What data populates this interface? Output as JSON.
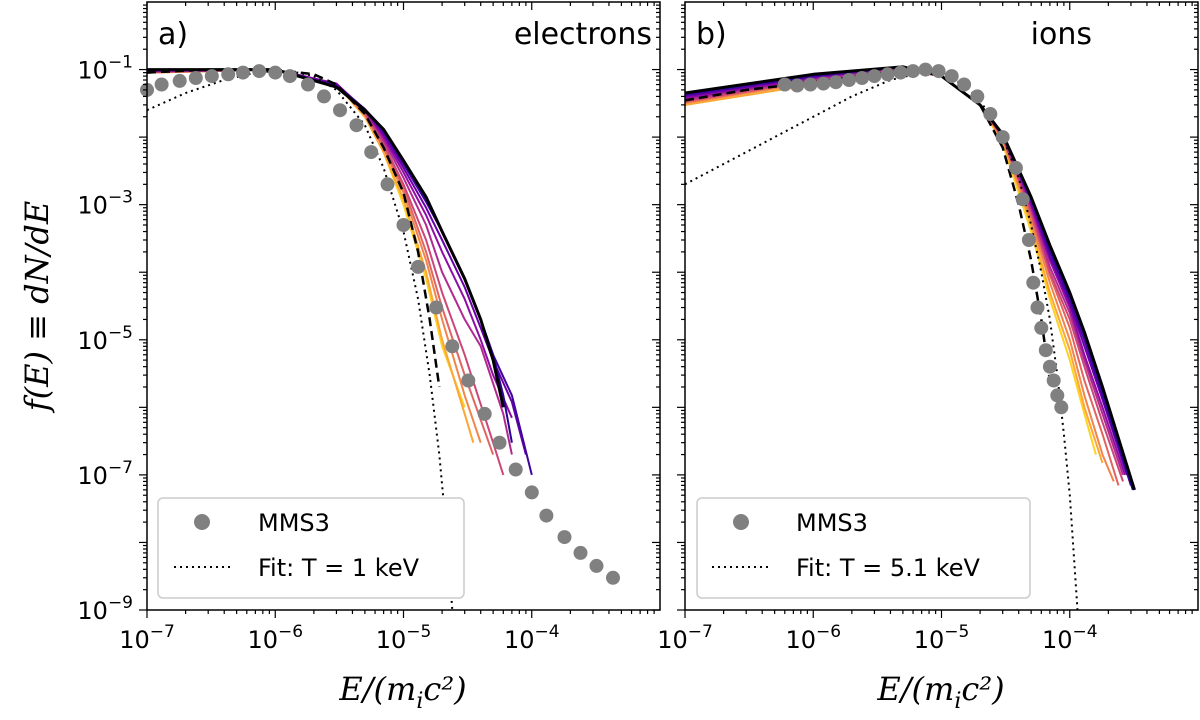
{
  "chart_data": [
    {
      "type": "line",
      "panel": "a)",
      "title": "electrons",
      "xlabel": "E/(m_i c^2)",
      "ylabel": "f(E) ≡ dN/dE",
      "xscale": "log",
      "yscale": "log",
      "xlim": [
        1e-07,
        0.001
      ],
      "ylim": [
        1e-09,
        1
      ],
      "xticks": [
        {
          "v": 1e-07,
          "label": "10",
          "exp": "−7"
        },
        {
          "v": 1e-06,
          "label": "10",
          "exp": "−6"
        },
        {
          "v": 1e-05,
          "label": "10",
          "exp": "−5"
        },
        {
          "v": 0.0001,
          "label": "10",
          "exp": "−4"
        }
      ],
      "yticks": [
        {
          "v": 1e-09,
          "label": "10",
          "exp": "−9"
        },
        {
          "v": 1e-07,
          "label": "10",
          "exp": "−7"
        },
        {
          "v": 1e-05,
          "label": "10",
          "exp": "−5"
        },
        {
          "v": 0.001,
          "label": "10",
          "exp": "−3"
        },
        {
          "v": 0.1,
          "label": "10",
          "exp": "−1"
        }
      ],
      "sim_series_colors": [
        "#fcd225",
        "#fca636",
        "#f2844b",
        "#e16462",
        "#cc4778",
        "#b12a90",
        "#8f0da4",
        "#6a00a8",
        "#41049d",
        "#2a0593",
        "#000004"
      ],
      "sim_series": [
        {
          "x": [
            1e-07,
            1e-06,
            3e-06,
            5e-06,
            7e-06,
            1e-05,
            1.5e-05,
            2e-05,
            3e-05
          ],
          "y": [
            0.09,
            0.1,
            0.06,
            0.02,
            0.006,
            0.001,
            8e-05,
            8e-06,
            1e-06
          ]
        },
        {
          "x": [
            1e-07,
            1e-06,
            3e-06,
            5e-06,
            7e-06,
            1e-05,
            1.5e-05,
            2e-05,
            3e-05,
            3.5e-05
          ],
          "y": [
            0.09,
            0.1,
            0.06,
            0.02,
            0.006,
            0.0012,
            0.0001,
            1e-05,
            8e-07,
            3e-07
          ]
        },
        {
          "x": [
            1e-07,
            1e-06,
            3e-06,
            5e-06,
            7e-06,
            1e-05,
            1.5e-05,
            2e-05,
            3e-05,
            4e-05
          ],
          "y": [
            0.09,
            0.1,
            0.06,
            0.022,
            0.007,
            0.0015,
            0.00015,
            2e-05,
            1.5e-06,
            3e-07
          ]
        },
        {
          "x": [
            1e-07,
            1e-06,
            3e-06,
            5e-06,
            7e-06,
            1e-05,
            1.5e-05,
            2e-05,
            3e-05,
            5e-05
          ],
          "y": [
            0.092,
            0.1,
            0.06,
            0.022,
            0.007,
            0.0018,
            0.0002,
            3e-05,
            3e-06,
            2e-07
          ]
        },
        {
          "x": [
            1e-07,
            1e-06,
            3e-06,
            5e-06,
            7e-06,
            1e-05,
            1.5e-05,
            2e-05,
            3e-05,
            5e-05,
            6e-05
          ],
          "y": [
            0.092,
            0.1,
            0.06,
            0.023,
            0.008,
            0.002,
            0.0003,
            5e-05,
            6e-06,
            3e-07,
            1e-07
          ]
        },
        {
          "x": [
            1e-07,
            1e-06,
            3e-06,
            5e-06,
            7e-06,
            1e-05,
            1.5e-05,
            2e-05,
            3e-05,
            4e-05,
            6e-05,
            7e-05
          ],
          "y": [
            0.093,
            0.1,
            0.062,
            0.025,
            0.009,
            0.0025,
            0.0005,
            0.0001,
            2e-05,
            8e-06,
            8e-07,
            2e-07
          ]
        },
        {
          "x": [
            1e-07,
            1e-06,
            3e-06,
            5e-06,
            7e-06,
            1e-05,
            1.5e-05,
            2e-05,
            3e-05,
            4e-05,
            5e-05,
            7e-05
          ],
          "y": [
            0.095,
            0.1,
            0.062,
            0.025,
            0.01,
            0.003,
            0.0007,
            0.0002,
            4e-05,
            1e-05,
            3e-06,
            7e-07
          ]
        },
        {
          "x": [
            1e-07,
            1e-06,
            3e-06,
            5e-06,
            7e-06,
            1e-05,
            1.5e-05,
            2e-05,
            3e-05,
            4e-05,
            5e-05,
            7e-05,
            9e-05
          ],
          "y": [
            0.097,
            0.1,
            0.06,
            0.026,
            0.011,
            0.0035,
            0.0009,
            0.0003,
            6e-05,
            1.5e-05,
            5e-06,
            1.2e-06,
            2e-07
          ]
        },
        {
          "x": [
            1e-07,
            1e-06,
            3e-06,
            5e-06,
            7e-06,
            1e-05,
            1.5e-05,
            2e-05,
            3e-05,
            4e-05,
            5e-05,
            7e-05,
            0.0001
          ],
          "y": [
            0.1,
            0.1,
            0.058,
            0.026,
            0.012,
            0.004,
            0.0011,
            0.0004,
            8e-05,
            2e-05,
            6e-06,
            1.5e-06,
            1e-07
          ]
        },
        {
          "x": [
            1e-07,
            1e-06,
            3e-06,
            5e-06,
            7e-06,
            1e-05,
            1.5e-05,
            2e-05,
            3e-05,
            4e-05,
            5e-05,
            6e-05,
            7e-05
          ],
          "y": [
            0.1,
            0.1,
            0.056,
            0.026,
            0.013,
            0.0045,
            0.0012,
            0.0004,
            8e-05,
            2e-05,
            6e-06,
            1.5e-06,
            3e-07
          ]
        },
        {
          "x": [
            1e-07,
            1e-06,
            3e-06,
            5e-06,
            7e-06,
            1e-05,
            1.5e-05,
            2e-05,
            3e-05,
            4e-05,
            5e-05,
            6e-05
          ],
          "y": [
            0.1,
            0.1,
            0.055,
            0.025,
            0.013,
            0.0045,
            0.0013,
            0.0004,
            8e-05,
            2e-05,
            5e-06,
            1e-06
          ]
        }
      ],
      "dashed_series": {
        "x": [
          1e-07,
          3e-07,
          1e-06,
          2e-06,
          3e-06,
          5e-06,
          7e-06,
          1e-05,
          1.3e-05,
          1.6e-05,
          1.9e-05
        ],
        "y": [
          0.09,
          0.1,
          0.1,
          0.085,
          0.06,
          0.022,
          0.007,
          0.0015,
          0.0002,
          2e-05,
          2e-06
        ]
      },
      "scatter_series": {
        "name": "MMS3",
        "x": [
          1e-07,
          1.3e-07,
          1.8e-07,
          2.4e-07,
          3.2e-07,
          4.3e-07,
          5.6e-07,
          7.5e-07,
          1e-06,
          1.3e-06,
          1.8e-06,
          2.4e-06,
          3.2e-06,
          4.3e-06,
          5.6e-06,
          7.5e-06,
          1e-05,
          1.3e-05,
          1.8e-05,
          2.4e-05,
          3.2e-05,
          4.3e-05,
          5.6e-05,
          7.5e-05,
          0.0001,
          0.00013,
          0.00018,
          0.00024,
          0.00032,
          0.00043
        ],
        "y": [
          0.05,
          0.06,
          0.068,
          0.075,
          0.08,
          0.085,
          0.09,
          0.095,
          0.09,
          0.08,
          0.06,
          0.04,
          0.025,
          0.015,
          0.006,
          0.002,
          0.0005,
          0.00012,
          3e-05,
          8e-06,
          2.5e-06,
          8e-07,
          3e-07,
          1.2e-07,
          5.5e-08,
          2.5e-08,
          1.2e-08,
          7e-09,
          4.5e-09,
          3e-09
        ]
      },
      "fit_series": {
        "name": "Fit: T = 1 keV",
        "x": [
          1e-07,
          2e-07,
          4e-07,
          7e-07,
          1e-06,
          1.5e-06,
          2e-06,
          3e-06,
          5e-06,
          7e-06,
          1e-05,
          1.3e-05,
          1.6e-05,
          1.9e-05,
          2.2e-05,
          2.4e-05
        ],
        "y": [
          0.025,
          0.045,
          0.07,
          0.09,
          0.095,
          0.09,
          0.08,
          0.05,
          0.015,
          0.0035,
          0.0004,
          4e-05,
          3e-06,
          2e-07,
          1e-08,
          1e-09
        ]
      },
      "legend": {
        "placement": "lower-left",
        "entries": [
          {
            "marker": "gray-circle",
            "label": "MMS3"
          },
          {
            "marker": "dotted-line",
            "label": "Fit: T = 1 keV"
          }
        ]
      }
    },
    {
      "type": "line",
      "panel": "b)",
      "title": "ions",
      "xlabel": "E/(m_i c^2)",
      "xscale": "log",
      "yscale": "log",
      "xlim": [
        1e-07,
        0.001
      ],
      "ylim": [
        1e-09,
        1
      ],
      "xticks": [
        {
          "v": 1e-07,
          "label": "10",
          "exp": "−7"
        },
        {
          "v": 1e-06,
          "label": "10",
          "exp": "−6"
        },
        {
          "v": 1e-05,
          "label": "10",
          "exp": "−5"
        },
        {
          "v": 0.0001,
          "label": "10",
          "exp": "−4"
        }
      ],
      "sim_series_colors": [
        "#fcd225",
        "#fca636",
        "#f2844b",
        "#e16462",
        "#cc4778",
        "#b12a90",
        "#8f0da4",
        "#6a00a8",
        "#41049d",
        "#2a0593",
        "#000004"
      ],
      "sim_series": [
        {
          "x": [
            1e-07,
            1e-06,
            5e-06,
            1e-05,
            2e-05,
            3e-05,
            5e-05,
            7e-05,
            0.0001,
            0.00013,
            0.00016
          ],
          "y": [
            0.03,
            0.06,
            0.1,
            0.08,
            0.03,
            0.008,
            0.0004,
            4e-05,
            5e-06,
            8e-07,
            2e-07
          ]
        },
        {
          "x": [
            1e-07,
            1e-06,
            5e-06,
            1e-05,
            2e-05,
            3e-05,
            5e-05,
            7e-05,
            0.0001,
            0.00013,
            0.00018
          ],
          "y": [
            0.03,
            0.06,
            0.1,
            0.08,
            0.03,
            0.009,
            0.0005,
            5e-05,
            7e-06,
            1e-06,
            1.5e-07
          ]
        },
        {
          "x": [
            1e-07,
            1e-06,
            5e-06,
            1e-05,
            2e-05,
            3e-05,
            5e-05,
            7e-05,
            0.0001,
            0.00013,
            0.00018,
            0.00022
          ],
          "y": [
            0.032,
            0.065,
            0.1,
            0.08,
            0.03,
            0.009,
            0.0006,
            7e-05,
            1e-05,
            1.5e-06,
            2e-07,
            8e-08
          ]
        },
        {
          "x": [
            1e-07,
            1e-06,
            5e-06,
            1e-05,
            2e-05,
            3e-05,
            5e-05,
            7e-05,
            0.0001,
            0.00013,
            0.00018,
            0.00024
          ],
          "y": [
            0.033,
            0.068,
            0.1,
            0.08,
            0.03,
            0.01,
            0.0007,
            9e-05,
            1.5e-05,
            2.5e-06,
            4e-07,
            7e-08
          ]
        },
        {
          "x": [
            1e-07,
            1e-06,
            5e-06,
            1e-05,
            2e-05,
            3e-05,
            5e-05,
            7e-05,
            0.0001,
            0.00013,
            0.00018,
            0.00026
          ],
          "y": [
            0.034,
            0.07,
            0.1,
            0.08,
            0.03,
            0.01,
            0.0008,
            0.0001,
            2e-05,
            4e-06,
            6e-07,
            8e-08
          ]
        },
        {
          "x": [
            1e-07,
            1e-06,
            5e-06,
            1e-05,
            2e-05,
            3e-05,
            5e-05,
            7e-05,
            0.0001,
            0.00013,
            0.00018,
            0.00026
          ],
          "y": [
            0.036,
            0.072,
            0.105,
            0.08,
            0.03,
            0.01,
            0.0009,
            0.00012,
            2.5e-05,
            5e-06,
            8e-07,
            1e-07
          ]
        },
        {
          "x": [
            1e-07,
            1e-06,
            5e-06,
            1e-05,
            2e-05,
            3e-05,
            5e-05,
            7e-05,
            0.0001,
            0.00013,
            0.00018,
            0.00027
          ],
          "y": [
            0.038,
            0.075,
            0.11,
            0.08,
            0.03,
            0.011,
            0.001,
            0.00015,
            3e-05,
            6e-06,
            1e-06,
            1e-07
          ]
        },
        {
          "x": [
            1e-07,
            1e-06,
            5e-06,
            1e-05,
            2e-05,
            3e-05,
            5e-05,
            7e-05,
            0.0001,
            0.00013,
            0.00018,
            0.00028
          ],
          "y": [
            0.04,
            0.078,
            0.11,
            0.08,
            0.03,
            0.011,
            0.0011,
            0.00017,
            3.5e-05,
            8e-06,
            1.3e-06,
            1e-07
          ]
        },
        {
          "x": [
            1e-07,
            1e-06,
            5e-06,
            1e-05,
            2e-05,
            3e-05,
            5e-05,
            7e-05,
            0.0001,
            0.00013,
            0.00018,
            0.0003
          ],
          "y": [
            0.042,
            0.08,
            0.11,
            0.08,
            0.03,
            0.011,
            0.0012,
            0.0002,
            4e-05,
            1e-05,
            1.5e-06,
            7e-08
          ]
        },
        {
          "x": [
            1e-07,
            1e-06,
            5e-06,
            1e-05,
            2e-05,
            3e-05,
            5e-05,
            7e-05,
            0.0001,
            0.00013,
            0.00018,
            0.00031
          ],
          "y": [
            0.044,
            0.082,
            0.11,
            0.08,
            0.03,
            0.011,
            0.0013,
            0.00022,
            4.5e-05,
            1.2e-05,
            1.8e-06,
            6e-08
          ]
        },
        {
          "x": [
            1e-07,
            1e-06,
            5e-06,
            1e-05,
            2e-05,
            3e-05,
            5e-05,
            7e-05,
            0.0001,
            0.00013,
            0.00018,
            0.00032
          ],
          "y": [
            0.045,
            0.085,
            0.11,
            0.08,
            0.03,
            0.011,
            0.0013,
            0.00025,
            5e-05,
            1.3e-05,
            2e-06,
            6e-08
          ]
        }
      ],
      "dashed_series": {
        "x": [
          1e-07,
          3e-07,
          1e-06,
          3e-06,
          6e-06,
          1e-05,
          2e-05,
          3e-05,
          4e-05,
          5e-05,
          6e-05,
          7e-05
        ],
        "y": [
          0.035,
          0.05,
          0.065,
          0.085,
          0.1,
          0.08,
          0.03,
          0.007,
          0.001,
          0.00015,
          2e-05,
          2.5e-06
        ]
      },
      "scatter_series": {
        "name": "MMS3",
        "x": [
          6e-07,
          7.5e-07,
          9.5e-07,
          1.2e-06,
          1.5e-06,
          1.9e-06,
          2.4e-06,
          3e-06,
          3.8e-06,
          4.8e-06,
          6e-06,
          7.5e-06,
          9.5e-06,
          1.2e-05,
          1.5e-05,
          1.9e-05,
          2.4e-05,
          3e-05,
          3.8e-05,
          4.3e-05,
          4.8e-05,
          5.2e-05,
          5.6e-05,
          6e-05,
          6.5e-05,
          7e-05,
          7.5e-05,
          8e-05,
          8.6e-05
        ],
        "y": [
          0.06,
          0.058,
          0.06,
          0.062,
          0.065,
          0.07,
          0.075,
          0.08,
          0.085,
          0.09,
          0.095,
          0.1,
          0.095,
          0.08,
          0.06,
          0.04,
          0.022,
          0.01,
          0.0035,
          0.0012,
          0.0003,
          7e-05,
          3e-05,
          1.5e-05,
          7e-06,
          4e-06,
          2.5e-06,
          1.5e-06,
          1e-06
        ]
      },
      "fit_series": {
        "name": "Fit: T = 5.1 keV",
        "x": [
          1e-07,
          2e-07,
          4e-07,
          7e-07,
          1e-06,
          2e-06,
          4e-06,
          7e-06,
          1e-05,
          1.5e-05,
          2e-05,
          3e-05,
          4e-05,
          5e-05,
          6e-05,
          7e-05,
          8e-05,
          9e-05,
          0.0001,
          0.000115
        ],
        "y": [
          0.002,
          0.004,
          0.008,
          0.014,
          0.02,
          0.04,
          0.07,
          0.09,
          0.085,
          0.06,
          0.035,
          0.01,
          0.0025,
          0.0005,
          0.0001,
          2e-05,
          3e-06,
          4e-07,
          5e-08,
          1e-09
        ]
      },
      "legend": {
        "placement": "lower-left",
        "entries": [
          {
            "marker": "gray-circle",
            "label": "MMS3"
          },
          {
            "marker": "dotted-line",
            "label": "Fit: T = 5.1 keV"
          }
        ]
      }
    }
  ],
  "axes_labels": {
    "ylabel_main": "f(E) ≡ dN/dE",
    "xlabel_a": "E/(m",
    "xlabel_a_sub": "i",
    "xlabel_a_rest": "c²)",
    "xlabel_b": "E/(m",
    "xlabel_b_sub": "i",
    "xlabel_b_rest": "c²)"
  }
}
